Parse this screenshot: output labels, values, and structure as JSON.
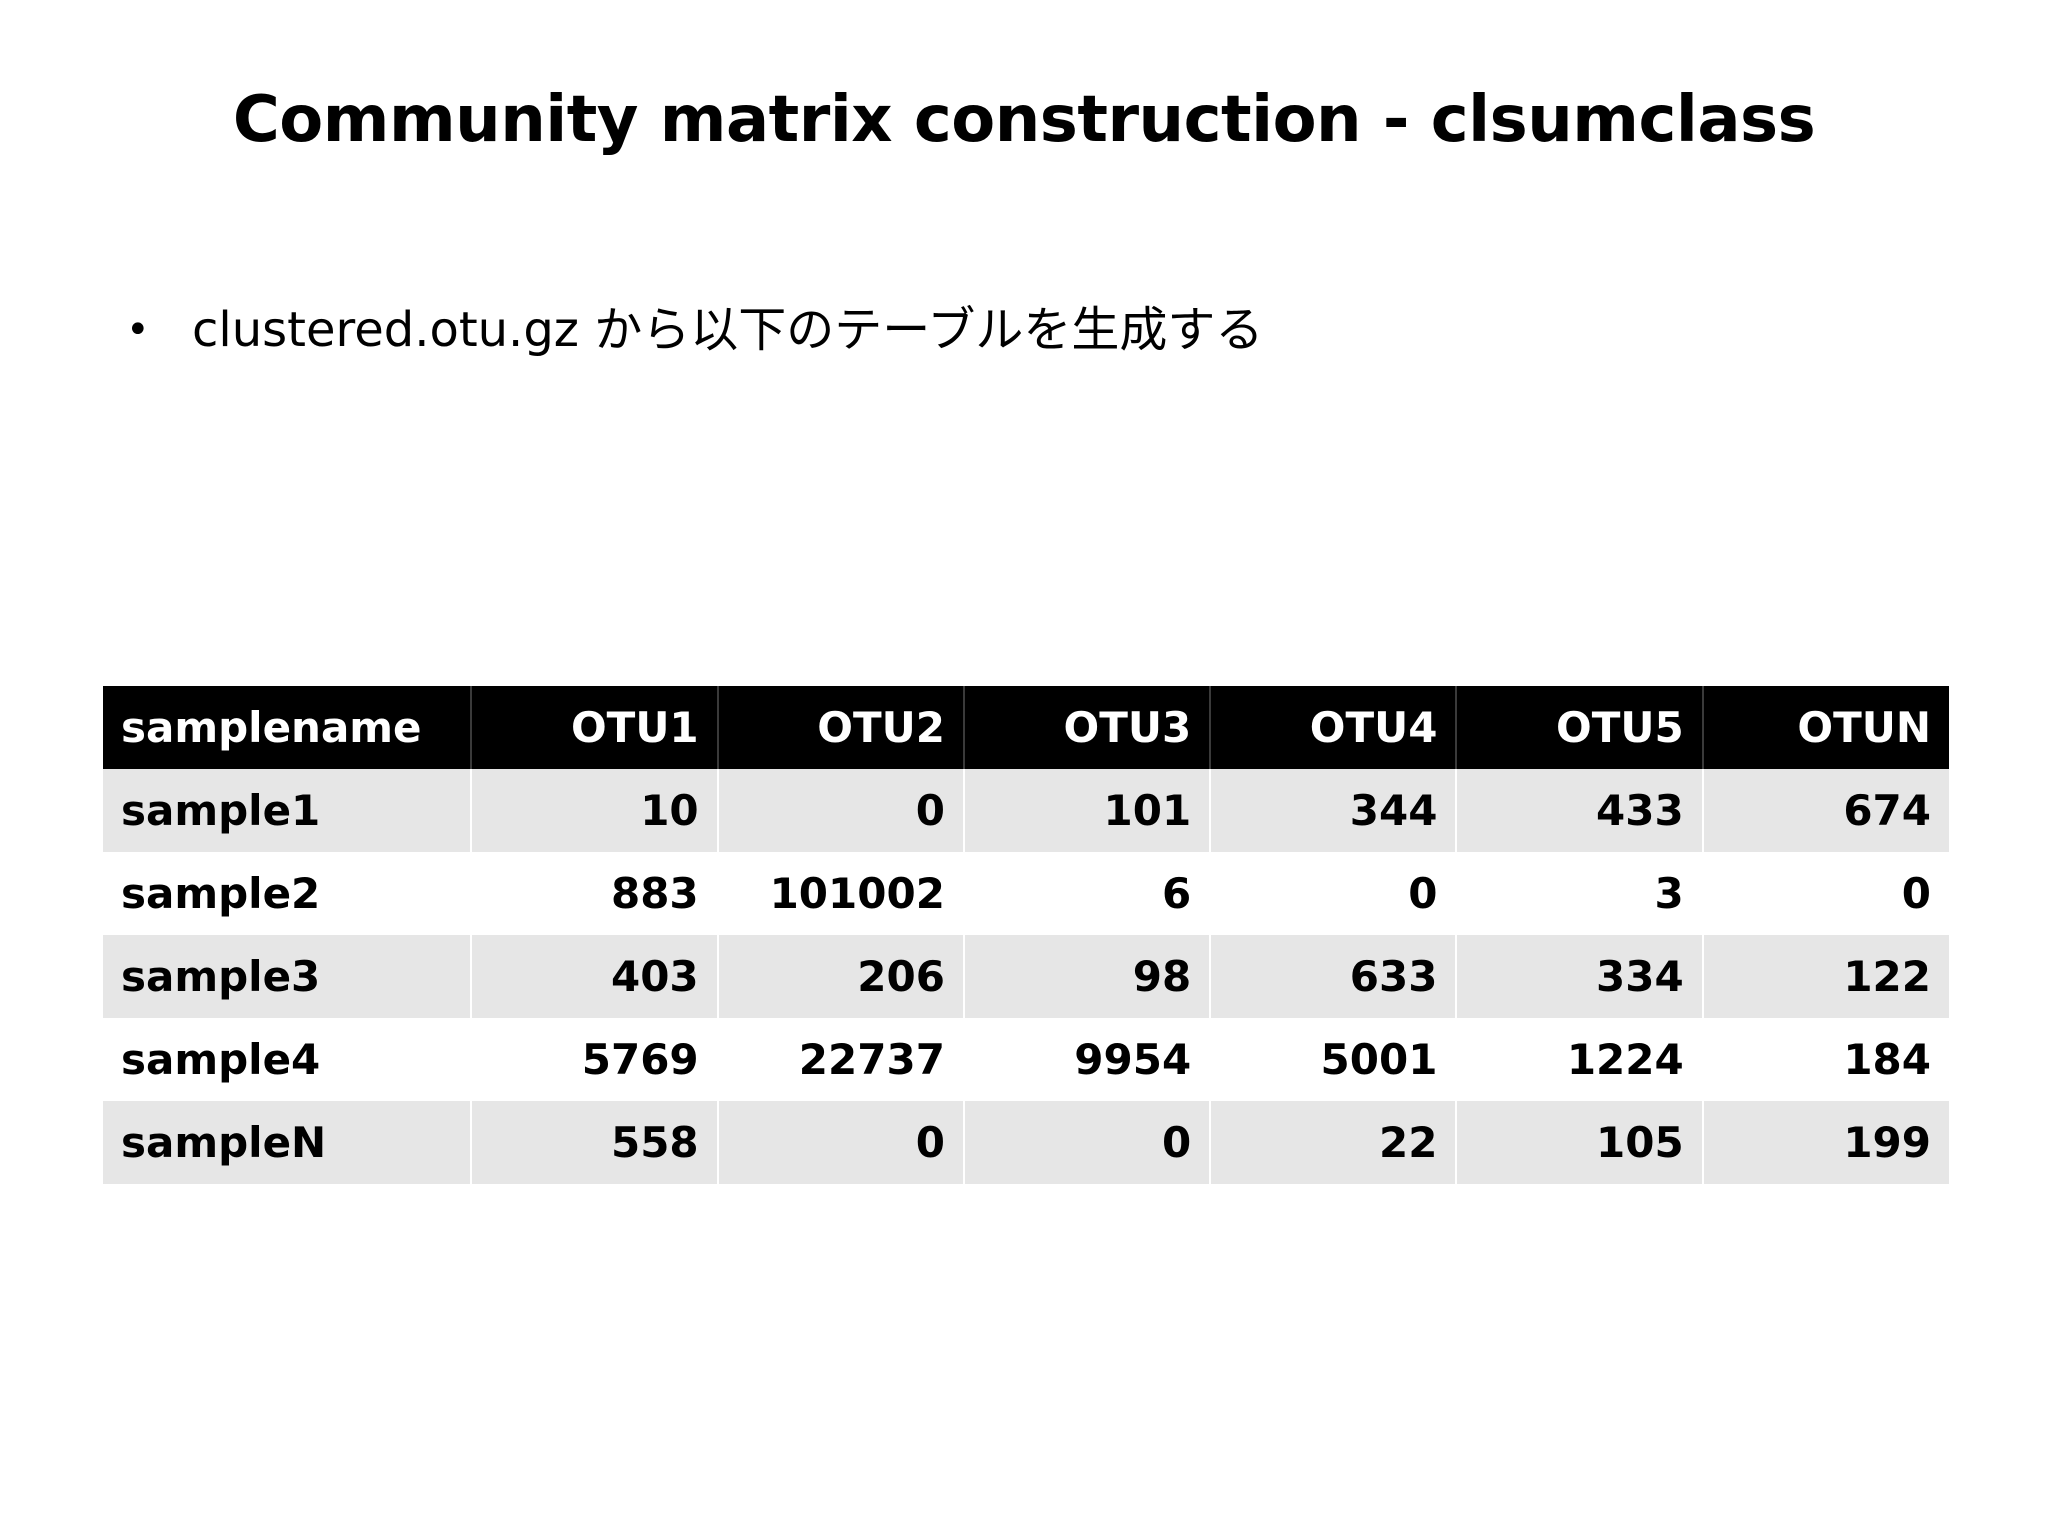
{
  "slide": {
    "title": "Community matrix construction - clsumclass",
    "bullets": [
      "clustered.otu.gz から以下のテーブルを生成する"
    ]
  },
  "table": {
    "headers": [
      "samplename",
      "OTU1",
      "OTU2",
      "OTU3",
      "OTU4",
      "OTU5",
      "OTUN"
    ],
    "rows": [
      [
        "sample1",
        "10",
        "0",
        "101",
        "344",
        "433",
        "674"
      ],
      [
        "sample2",
        "883",
        "101002",
        "6",
        "0",
        "3",
        "0"
      ],
      [
        "sample3",
        "403",
        "206",
        "98",
        "633",
        "334",
        "122"
      ],
      [
        "sample4",
        "5769",
        "22737",
        "9954",
        "5001",
        "1224",
        "184"
      ],
      [
        "sampleN",
        "558",
        "0",
        "0",
        "22",
        "105",
        "199"
      ]
    ]
  },
  "colors": {
    "header_bg": "#000000",
    "header_text": "#ffffff",
    "stripe_bg": "#e6e6e6",
    "text": "#000000"
  }
}
